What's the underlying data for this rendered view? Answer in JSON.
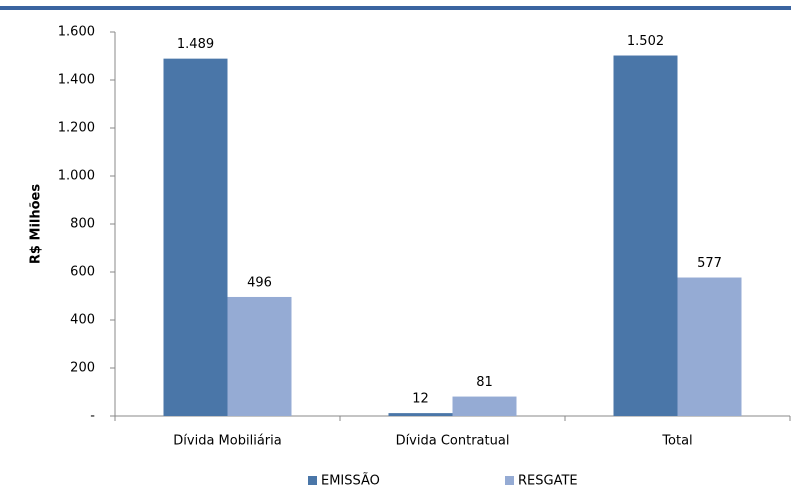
{
  "chart_data": {
    "type": "bar",
    "y_label": "R$ Milhões",
    "categories": [
      "Dívida Mobiliária",
      "Dívida Contratual",
      "Total"
    ],
    "series": [
      {
        "name": "EMISSÃO",
        "color": "#4a76a8",
        "values": [
          1489,
          12,
          1502
        ],
        "value_labels": [
          "1.489",
          "12",
          "1.502"
        ]
      },
      {
        "name": "RESGATE",
        "color": "#95abd4",
        "values": [
          496,
          81,
          577
        ],
        "value_labels": [
          "496",
          "81",
          "577"
        ]
      }
    ],
    "ylim": [
      0,
      1600
    ],
    "yticks": [
      {
        "value": 0,
        "label": "-"
      },
      200,
      400,
      600,
      800,
      {
        "value": 1000,
        "label": "1.000"
      },
      {
        "value": 1200,
        "label": "1.200"
      },
      {
        "value": 1400,
        "label": "1.400"
      },
      {
        "value": 1600,
        "label": "1.600"
      }
    ]
  }
}
